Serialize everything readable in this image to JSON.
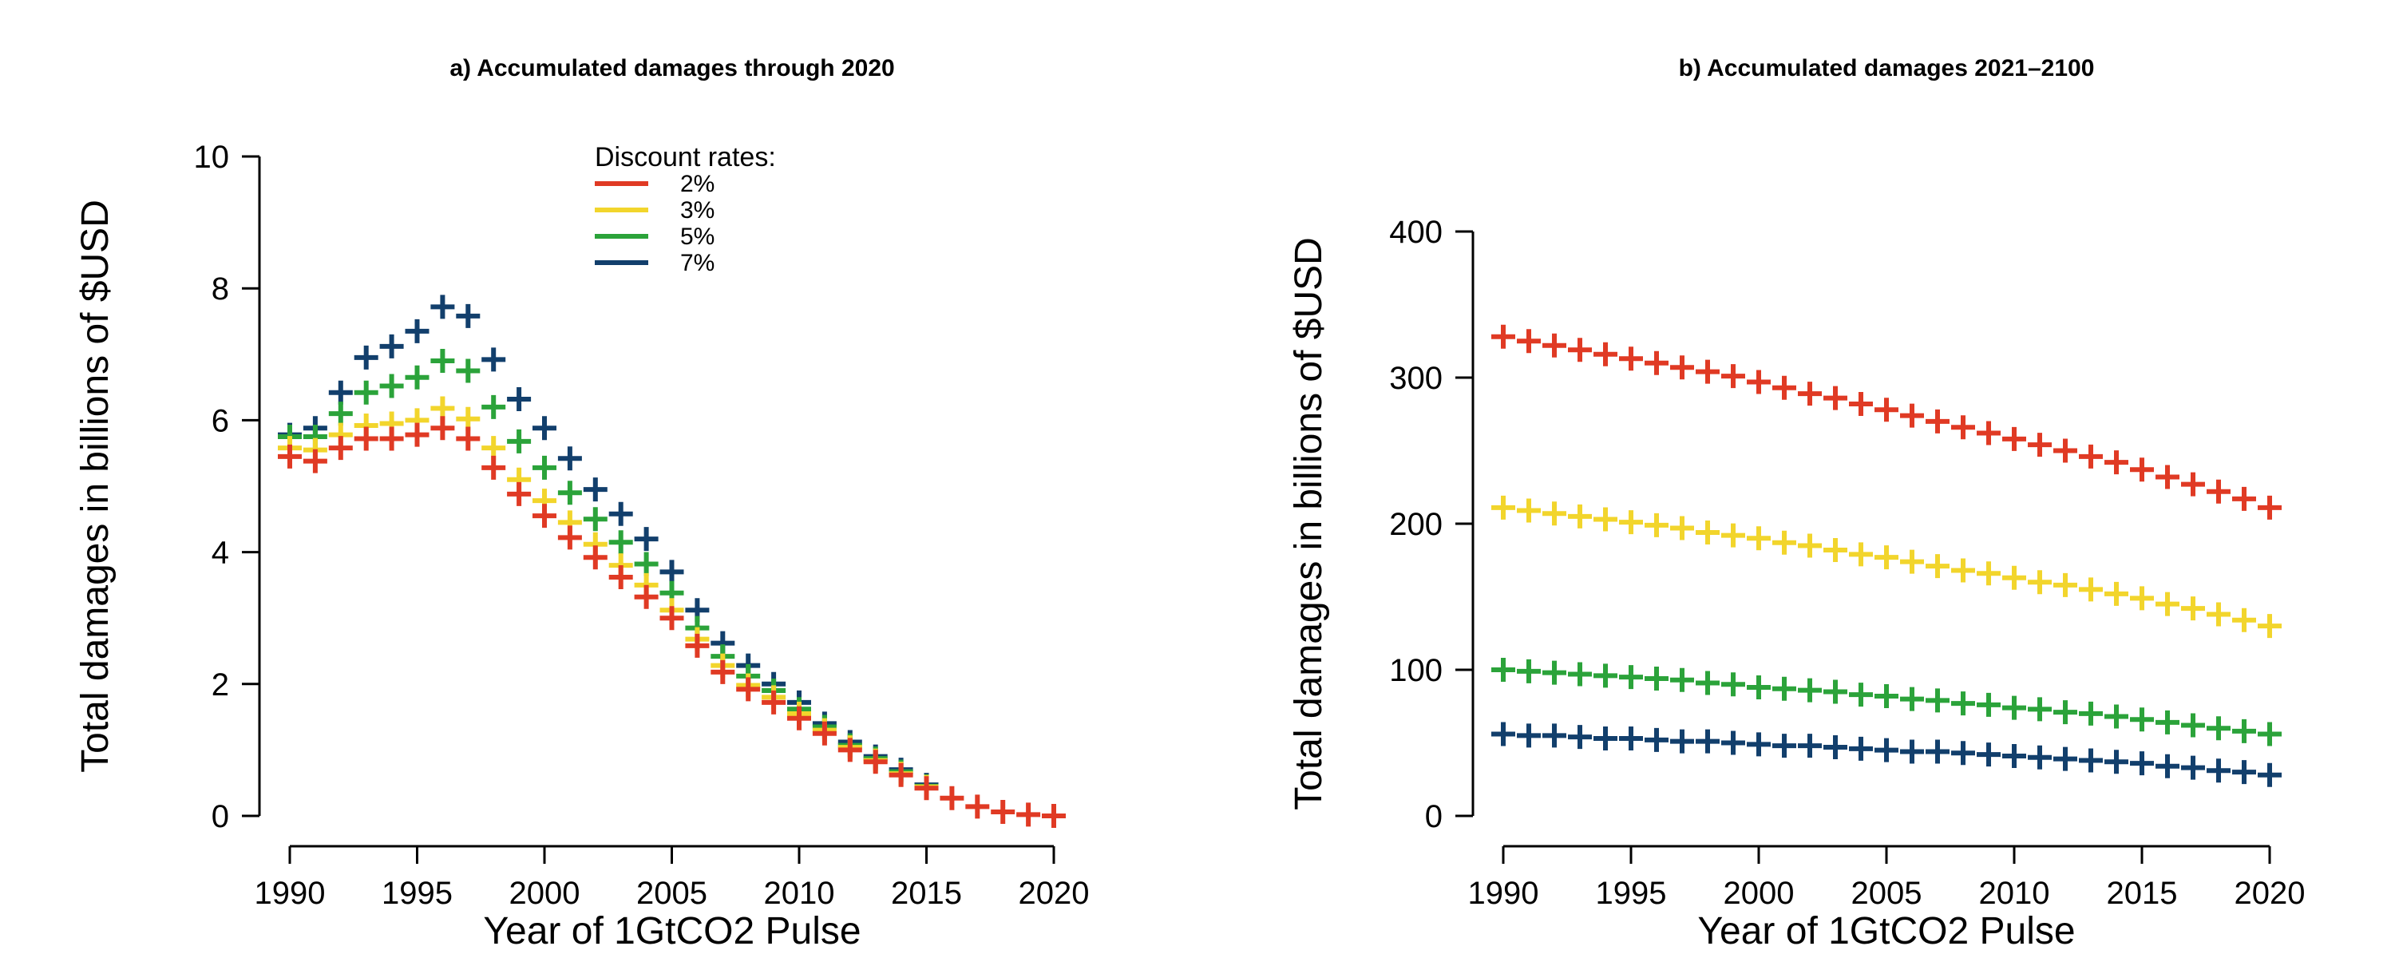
{
  "chart_data": [
    {
      "type": "scatter",
      "title": "a)  Accumulated damages through 2020",
      "xlabel": "Year of 1GtCO2 Pulse",
      "ylabel": "Total damages in billions of $USD",
      "xlim": [
        1990,
        2020
      ],
      "ylim": [
        0,
        10
      ],
      "x_ticks": [
        1990,
        1995,
        2000,
        2005,
        2010,
        2015,
        2020
      ],
      "y_ticks": [
        0,
        2,
        4,
        6,
        8,
        10
      ],
      "legend": {
        "title": "Discount rates:",
        "placement": "top-center"
      },
      "x": [
        1990,
        1991,
        1992,
        1993,
        1994,
        1995,
        1996,
        1997,
        1998,
        1999,
        2000,
        2001,
        2002,
        2003,
        2004,
        2005,
        2006,
        2007,
        2008,
        2009,
        2010,
        2011,
        2012,
        2013,
        2014,
        2015,
        2016,
        2017,
        2018,
        2019,
        2020
      ],
      "series": [
        {
          "name": "2%",
          "color": "#e03a24",
          "values": [
            5.45,
            5.38,
            5.58,
            5.72,
            5.72,
            5.78,
            5.88,
            5.72,
            5.28,
            4.88,
            4.55,
            4.22,
            3.92,
            3.62,
            3.32,
            3.0,
            2.58,
            2.18,
            1.92,
            1.72,
            1.48,
            1.25,
            1.0,
            0.82,
            0.62,
            0.42,
            0.27,
            0.14,
            0.06,
            0.02,
            0.0
          ]
        },
        {
          "name": "3%",
          "color": "#f2d52c",
          "values": [
            5.58,
            5.55,
            5.78,
            5.92,
            5.95,
            6.0,
            6.18,
            6.02,
            5.58,
            5.1,
            4.78,
            4.45,
            4.12,
            3.8,
            3.5,
            3.12,
            2.68,
            2.28,
            1.98,
            1.8,
            1.55,
            1.3,
            1.04,
            0.84,
            0.64,
            0.44,
            null,
            null,
            null,
            null,
            null
          ]
        },
        {
          "name": "5%",
          "color": "#2ba33a",
          "values": [
            5.75,
            5.75,
            6.1,
            6.42,
            6.52,
            6.65,
            6.9,
            6.75,
            6.2,
            5.68,
            5.28,
            4.9,
            4.5,
            4.15,
            3.82,
            3.38,
            2.85,
            2.42,
            2.12,
            1.9,
            1.62,
            1.35,
            1.07,
            0.87,
            0.67,
            0.45,
            null,
            null,
            null,
            null,
            null
          ]
        },
        {
          "name": "7%",
          "color": "#123f6c",
          "values": [
            5.78,
            5.88,
            6.42,
            6.95,
            7.12,
            7.35,
            7.72,
            7.58,
            6.92,
            6.32,
            5.88,
            5.42,
            4.95,
            4.58,
            4.2,
            3.7,
            3.12,
            2.62,
            2.28,
            2.0,
            1.72,
            1.4,
            1.12,
            0.9,
            0.7,
            0.47,
            null,
            null,
            null,
            null,
            null
          ]
        }
      ]
    },
    {
      "type": "scatter",
      "title": "b)  Accumulated damages 2021–2100",
      "xlabel": "Year of 1GtCO2 Pulse",
      "ylabel": "Total damages in billions of $USD",
      "xlim": [
        1990,
        2020
      ],
      "ylim": [
        0,
        400
      ],
      "x_ticks": [
        1990,
        1995,
        2000,
        2005,
        2010,
        2015,
        2020
      ],
      "y_ticks": [
        0,
        100,
        200,
        300,
        400
      ],
      "x": [
        1990,
        1991,
        1992,
        1993,
        1994,
        1995,
        1996,
        1997,
        1998,
        1999,
        2000,
        2001,
        2002,
        2003,
        2004,
        2005,
        2006,
        2007,
        2008,
        2009,
        2010,
        2011,
        2012,
        2013,
        2014,
        2015,
        2016,
        2017,
        2018,
        2019,
        2020
      ],
      "series": [
        {
          "name": "2%",
          "color": "#e03a24",
          "values": [
            328,
            325,
            322,
            319,
            316,
            313,
            310,
            307,
            304,
            301,
            297,
            293,
            289,
            286,
            282,
            278,
            274,
            270,
            266,
            262,
            258,
            254,
            250,
            246,
            242,
            237,
            232,
            227,
            222,
            217,
            211
          ]
        },
        {
          "name": "3%",
          "color": "#f2d52c",
          "values": [
            211,
            209,
            207,
            205,
            203,
            201,
            199,
            197,
            194,
            192,
            190,
            187,
            185,
            182,
            179,
            177,
            174,
            171,
            168,
            166,
            163,
            160,
            158,
            155,
            152,
            149,
            145,
            142,
            138,
            134,
            130
          ]
        },
        {
          "name": "5%",
          "color": "#2ba33a",
          "values": [
            100,
            99,
            98,
            97,
            96,
            95,
            94,
            93,
            91,
            90,
            88,
            87,
            86,
            85,
            83,
            82,
            80,
            79,
            77,
            76,
            74,
            73,
            71,
            70,
            68,
            66,
            64,
            62,
            60,
            58,
            56
          ]
        },
        {
          "name": "7%",
          "color": "#123f6c",
          "values": [
            56,
            55,
            55,
            54,
            53,
            53,
            52,
            51,
            51,
            50,
            49,
            48,
            48,
            47,
            46,
            45,
            44,
            44,
            43,
            42,
            41,
            40,
            39,
            38,
            37,
            36,
            34,
            33,
            31,
            30,
            28
          ]
        }
      ]
    }
  ]
}
